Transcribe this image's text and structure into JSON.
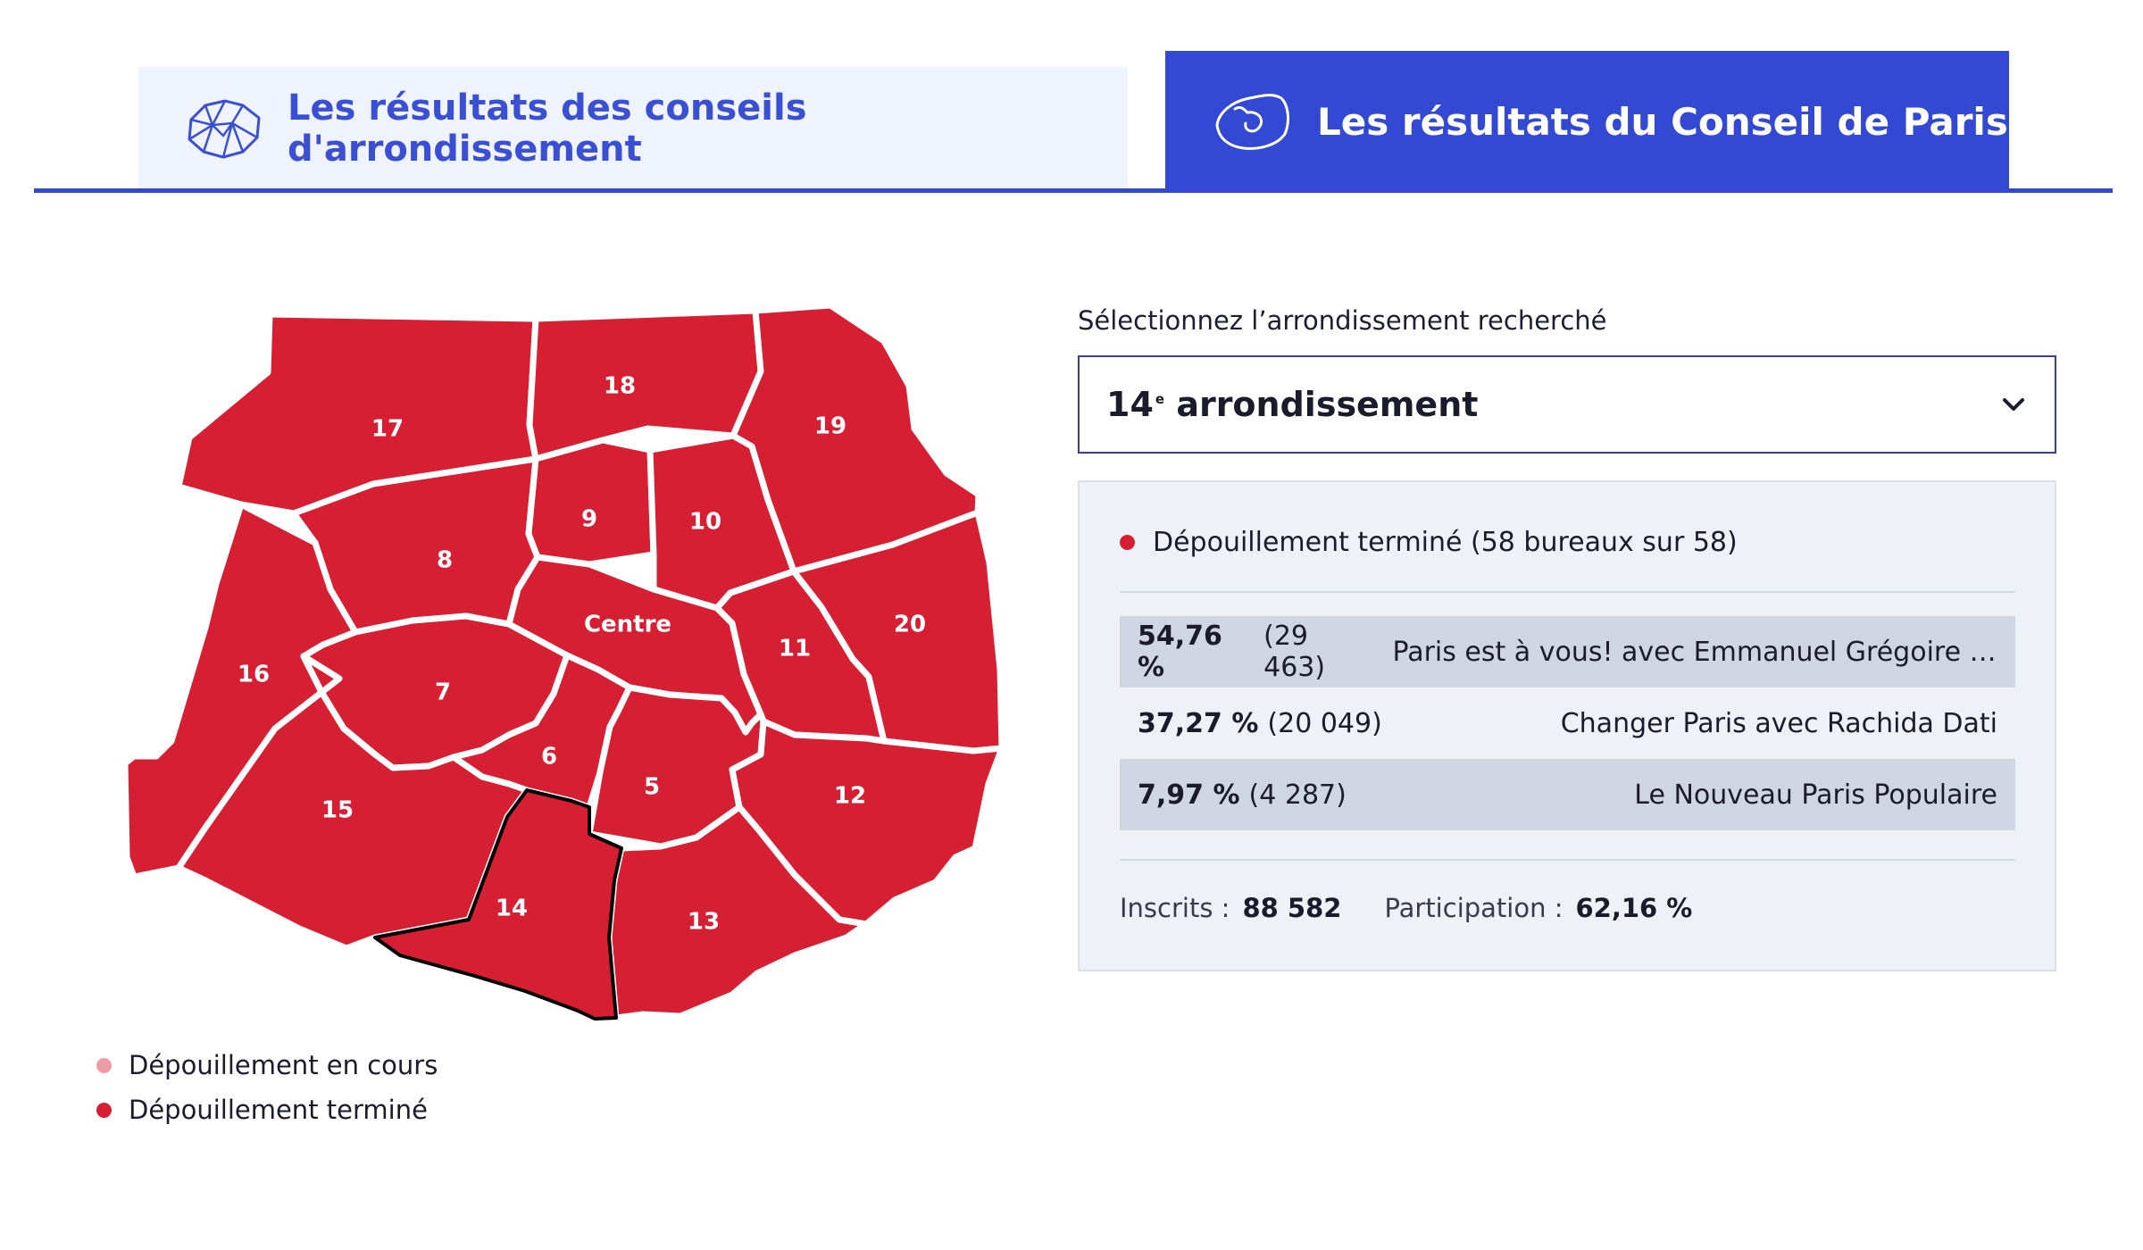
{
  "tabs": [
    {
      "label": "Les résultats des conseils d'arrondissement",
      "active": false,
      "icon": "district-map-icon"
    },
    {
      "label": "Les résultats du Conseil de Paris",
      "active": true,
      "icon": "paris-outline-icon"
    }
  ],
  "colors": {
    "accent": "#3349d3",
    "in_progress": "#ee9aa5",
    "completed": "#d71f33"
  },
  "map": {
    "selected": "14",
    "arrondissements": [
      {
        "id": "17",
        "label": "17",
        "status": "completed"
      },
      {
        "id": "18",
        "label": "18",
        "status": "completed"
      },
      {
        "id": "19",
        "label": "19",
        "status": "completed"
      },
      {
        "id": "8",
        "label": "8",
        "status": "completed"
      },
      {
        "id": "9",
        "label": "9",
        "status": "completed"
      },
      {
        "id": "10",
        "label": "10",
        "status": "completed"
      },
      {
        "id": "centre",
        "label": "Centre",
        "status": "completed"
      },
      {
        "id": "11",
        "label": "11",
        "status": "completed"
      },
      {
        "id": "20",
        "label": "20",
        "status": "completed"
      },
      {
        "id": "16",
        "label": "16",
        "status": "completed"
      },
      {
        "id": "7",
        "label": "7",
        "status": "completed"
      },
      {
        "id": "6",
        "label": "6",
        "status": "completed"
      },
      {
        "id": "5",
        "label": "5",
        "status": "completed"
      },
      {
        "id": "15",
        "label": "15",
        "status": "completed"
      },
      {
        "id": "12",
        "label": "12",
        "status": "completed"
      },
      {
        "id": "14",
        "label": "14",
        "status": "completed"
      },
      {
        "id": "13",
        "label": "13",
        "status": "completed"
      }
    ]
  },
  "legend": [
    {
      "label": "Dépouillement en cours",
      "color": "#ee9aa5"
    },
    {
      "label": "Dépouillement terminé",
      "color": "#d71f33"
    }
  ],
  "selector": {
    "label": "Sélectionnez l’arrondissement recherché",
    "value_number": "14",
    "value_sup": "e",
    "value_text": "arrondissement"
  },
  "results": {
    "status": "Dépouillement terminé (58 bureaux sur 58)",
    "rows": [
      {
        "pct": "54,76 %",
        "votes": "(29 463)",
        "list": "Paris est à vous! avec Emmanuel Grégoire L'..."
      },
      {
        "pct": "37,27 %",
        "votes": "(20 049)",
        "list": "Changer Paris avec Rachida Dati"
      },
      {
        "pct": "7,97 %",
        "votes": "(4 287)",
        "list": "Le Nouveau Paris Populaire"
      }
    ],
    "registered_label": "Inscrits :",
    "registered_value": "88 582",
    "turnout_label": "Participation :",
    "turnout_value": "62,16 %"
  }
}
